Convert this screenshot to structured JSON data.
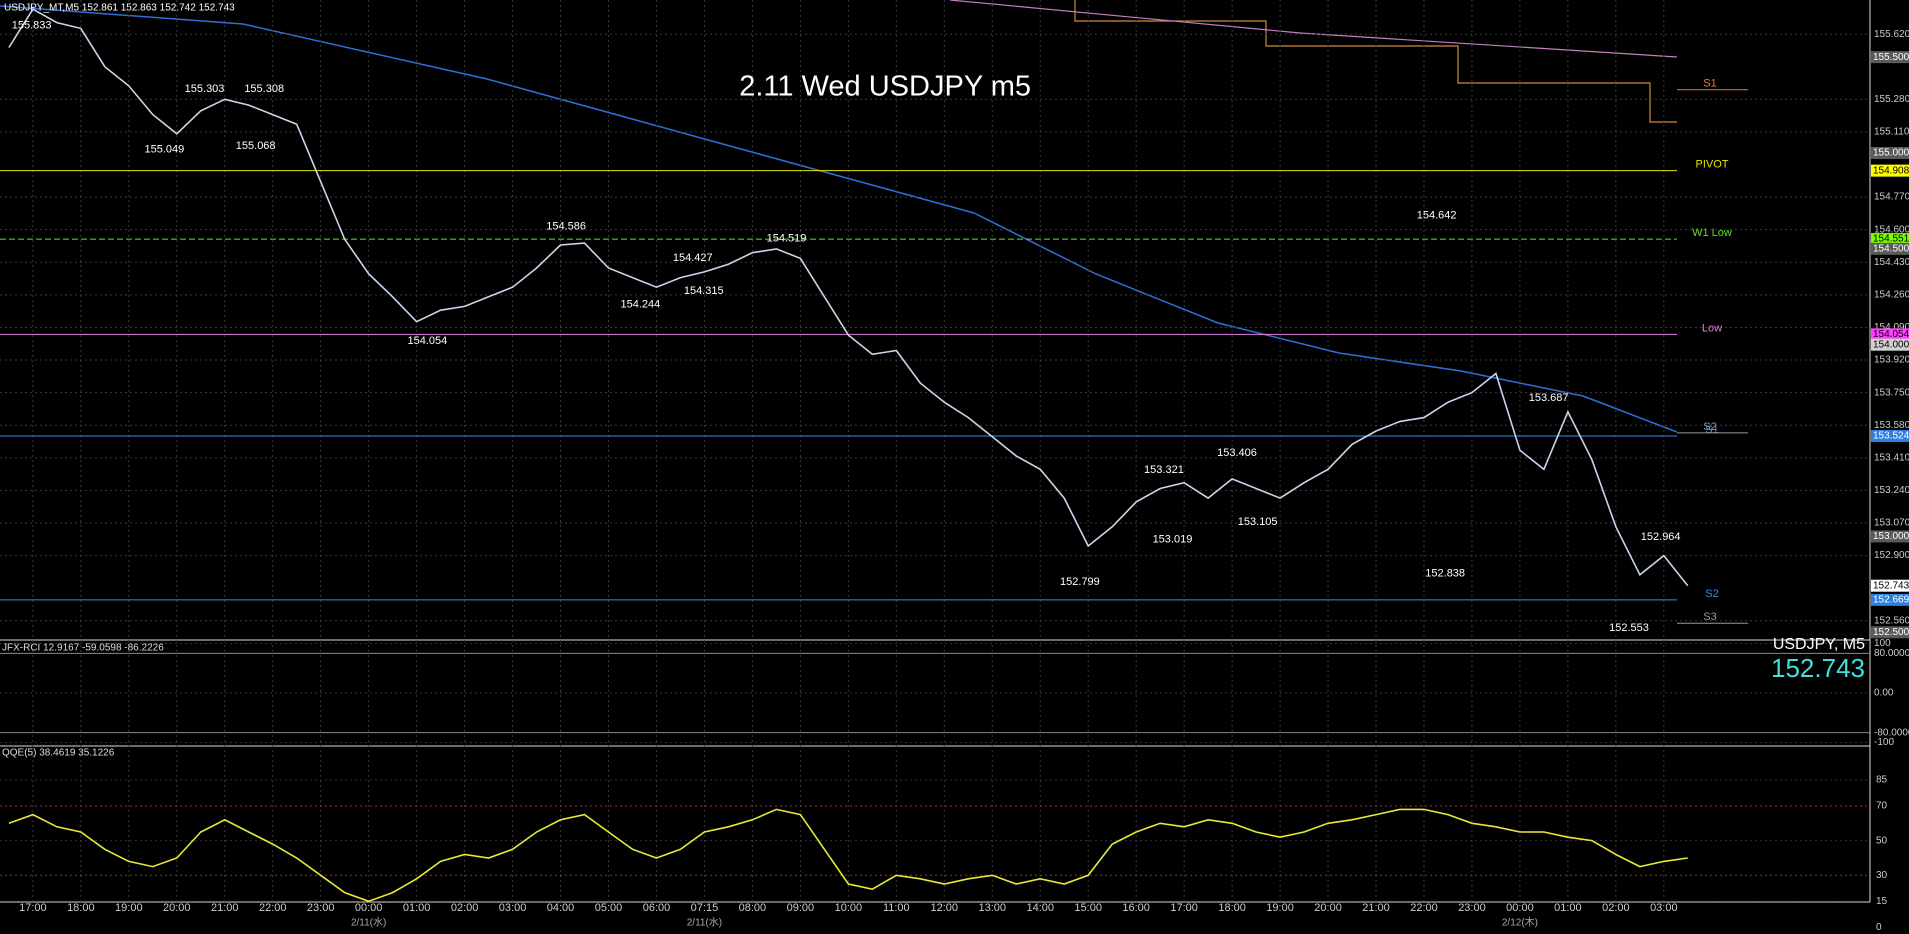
{
  "header": "USDJPY_MT,M5  152.861 152.863 152.742 152.743",
  "chart_data": [
    {
      "type": "line",
      "title": "2.11 Wed USDJPY m5",
      "color": "#c8d6ec",
      "grid": true,
      "categories": [
        null,
        "17:00",
        null,
        "18:00",
        null,
        "19:00",
        null,
        "20:00",
        null,
        "21:00",
        null,
        "22:00",
        null,
        "23:00",
        null,
        "00:00",
        null,
        "01:00",
        null,
        "02:00",
        null,
        "03:00",
        null,
        "04:00",
        null,
        "05:00",
        null,
        "06:00",
        null,
        "07:15",
        null,
        "08:00",
        null,
        "09:00",
        null,
        "10:00",
        null,
        "11:00",
        null,
        "12:00",
        null,
        "13:00",
        null,
        "14:00",
        null,
        "15:00",
        null,
        "16:00",
        null,
        "17:00",
        null,
        "18:00",
        null,
        "19:00",
        null,
        "20:00",
        null,
        "21:00",
        null,
        "22:00",
        null,
        "23:00",
        null,
        "00:00",
        null,
        "01:00",
        null,
        "02:00",
        null,
        "03:00",
        null
      ],
      "values": [
        155.55,
        155.75,
        155.68,
        155.65,
        155.45,
        155.35,
        155.2,
        155.1,
        155.22,
        155.28,
        155.25,
        155.2,
        155.15,
        154.85,
        154.55,
        154.37,
        154.25,
        154.12,
        154.18,
        154.2,
        154.25,
        154.3,
        154.4,
        154.52,
        154.53,
        154.4,
        154.35,
        154.3,
        154.35,
        154.38,
        154.42,
        154.48,
        154.5,
        154.45,
        154.25,
        154.05,
        153.95,
        153.97,
        153.8,
        153.7,
        153.62,
        153.52,
        153.42,
        153.35,
        153.2,
        152.95,
        153.05,
        153.18,
        153.25,
        153.28,
        153.2,
        153.3,
        153.25,
        153.2,
        153.28,
        153.35,
        153.48,
        153.55,
        153.6,
        153.62,
        153.7,
        153.75,
        153.85,
        153.45,
        153.35,
        153.65,
        153.4,
        153.05,
        152.8,
        152.9,
        152.743
      ],
      "date_labels": [
        "2/11(水)",
        "2/11(水)",
        "2/12(木)"
      ],
      "ylim": [
        152.465,
        155.798
      ],
      "yticks": [
        {
          "value": 155.62,
          "label": "155.620"
        },
        {
          "value": 155.28,
          "label": "155.280"
        },
        {
          "value": 155.11,
          "label": "155.110"
        },
        {
          "value": 154.77,
          "label": "154.770"
        },
        {
          "value": 154.6,
          "label": "154.600"
        },
        {
          "value": 154.43,
          "label": "154.430"
        },
        {
          "value": 154.26,
          "label": "154.260"
        },
        {
          "value": 154.09,
          "label": "154.090"
        },
        {
          "value": 153.92,
          "label": "153.920"
        },
        {
          "value": 153.75,
          "label": "153.750"
        },
        {
          "value": 153.58,
          "label": "153.580"
        },
        {
          "value": 153.41,
          "label": "153.410"
        },
        {
          "value": 153.24,
          "label": "153.240"
        },
        {
          "value": 153.07,
          "label": "153.070"
        },
        {
          "value": 152.9,
          "label": "152.900"
        },
        {
          "value": 152.56,
          "label": "152.560"
        }
      ],
      "price_tags": [
        {
          "value": 155.5,
          "label": "155.500",
          "color": "#5a5a5a"
        },
        {
          "value": 155,
          "label": "155.000",
          "color": "#5a5a5a"
        },
        {
          "value": 154.908,
          "color": "#ffff00"
        },
        {
          "value": 154.551,
          "color": "#7cfc00"
        },
        {
          "value": 154.5,
          "label": "154.500",
          "color": "#5a5a5a"
        },
        {
          "value": 154.054,
          "color": "#ff40ff"
        },
        {
          "value": 154,
          "label": "154.000",
          "color": "#d0d0d0"
        },
        {
          "value": 153.524,
          "color": "#2f7fe0"
        },
        {
          "value": 153,
          "label": "153.000",
          "color": "#5a5a5a"
        },
        {
          "value": 152.743,
          "color": "#ffffff"
        },
        {
          "value": 152.669,
          "color": "#2f7fe0"
        },
        {
          "value": 152.5,
          "label": "152.500",
          "color": "#5a5a5a"
        }
      ],
      "levels": [
        {
          "name": "S1",
          "value": 155.33,
          "color": "#e08040"
        },
        {
          "name": "PIVOT",
          "value": 154.908,
          "color": "#e5e500"
        },
        {
          "name": "W1 Low",
          "value": 154.551,
          "color": "#66dd33"
        },
        {
          "name": "Low",
          "value": 154.054,
          "color": "#e080e0"
        },
        {
          "name": "S1",
          "value": 153.524,
          "color": "#3a8ce8"
        },
        {
          "name": "S2",
          "value": 153.54,
          "color": "#999999"
        },
        {
          "name": "S2",
          "value": 152.669,
          "color": "#3a8ce8"
        },
        {
          "name": "S3",
          "value": 152.547,
          "color": "#999999"
        }
      ],
      "annotations": [
        "155.833",
        "155.303",
        "155.308",
        "155.049",
        "155.068",
        "154.586",
        "154.427",
        "154.519",
        "154.315",
        "154.244",
        "154.054",
        "154.642",
        "153.687",
        "153.406",
        "153.321",
        "153.019",
        "153.105",
        "152.799",
        "152.838",
        "152.964",
        "152.553"
      ]
    },
    {
      "type": "indicator",
      "title": "JFX-RCI 12.9167 -59.0598 -86.2226",
      "symbol": "USDJPY, M5",
      "last_price": "152.743",
      "ylim": [
        -105,
        105
      ],
      "yticks": [
        100,
        {
          "value": 80,
          "label": "80.0000"
        },
        {
          "value": 0,
          "label": "0.00"
        },
        {
          "value": -80,
          "label": "-80.0000"
        },
        -100
      ]
    },
    {
      "type": "line",
      "title": "QQE(5) 38.4619 35.1226",
      "color": "#e8e83a",
      "values": [
        60,
        65,
        58,
        55,
        45,
        38,
        35,
        40,
        55,
        62,
        55,
        48,
        40,
        30,
        20,
        15,
        20,
        28,
        38,
        42,
        40,
        45,
        55,
        62,
        65,
        55,
        45,
        40,
        45,
        55,
        58,
        62,
        68,
        65,
        45,
        25,
        22,
        30,
        28,
        25,
        28,
        30,
        25,
        28,
        25,
        30,
        48,
        55,
        60,
        58,
        62,
        60,
        55,
        52,
        55,
        60,
        62,
        65,
        68,
        68,
        65,
        60,
        58,
        55,
        55,
        52,
        50,
        42,
        35,
        38,
        40
      ],
      "ylim": [
        14.6,
        104
      ],
      "yticks": [
        85,
        70,
        50,
        30,
        15,
        0
      ]
    }
  ]
}
